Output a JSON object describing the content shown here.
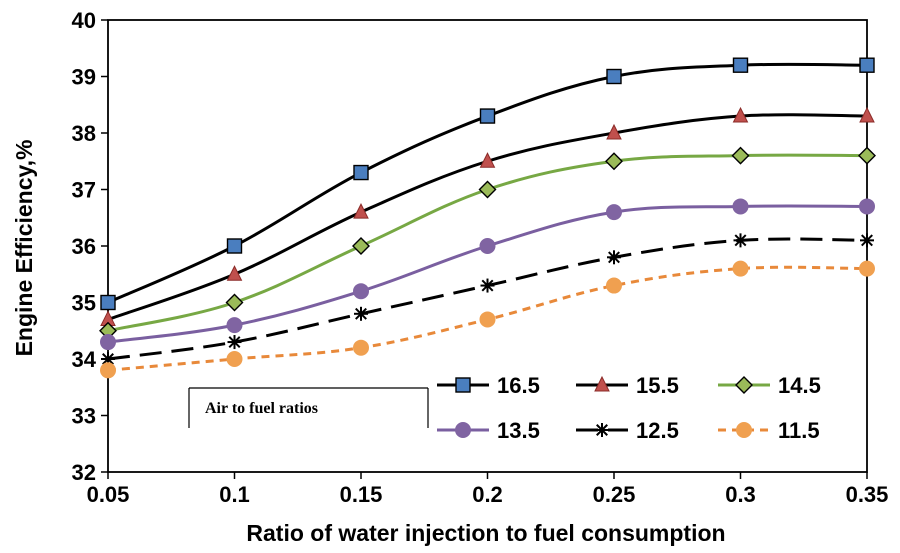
{
  "chart_data": {
    "type": "line",
    "title": "",
    "xlabel": "Ratio of water injection to fuel consumption",
    "ylabel": "Engine Efficiency,%",
    "x": [
      0.05,
      0.1,
      0.15,
      0.2,
      0.25,
      0.3,
      0.35
    ],
    "x_tick_labels": [
      "0.05",
      "0.1",
      "0.15",
      "0.2",
      "0.25",
      "0.3",
      "0.35"
    ],
    "y_tick_labels": [
      "32",
      "33",
      "34",
      "35",
      "36",
      "37",
      "38",
      "39",
      "40"
    ],
    "xlim": [
      0.05,
      0.35
    ],
    "ylim": [
      32,
      40
    ],
    "grid": false,
    "legend_position": "bottom-right",
    "annotation": "Air to fuel ratios",
    "series": [
      {
        "name": "16.5",
        "values": [
          35.0,
          36.0,
          37.3,
          38.3,
          39.0,
          39.2,
          39.2
        ],
        "color": "#000000",
        "marker": "square",
        "marker_color": "#4a7ebf",
        "dash": "solid"
      },
      {
        "name": "15.5",
        "values": [
          34.7,
          35.5,
          36.6,
          37.5,
          38.0,
          38.3,
          38.3
        ],
        "color": "#000000",
        "marker": "triangle",
        "marker_color": "#c0504d",
        "dash": "solid"
      },
      {
        "name": "14.5",
        "values": [
          34.5,
          35.0,
          36.0,
          37.0,
          37.5,
          37.6,
          37.6
        ],
        "color": "#77a844",
        "marker": "diamond",
        "marker_color": "#9bbb59",
        "dash": "solid"
      },
      {
        "name": "13.5",
        "values": [
          34.3,
          34.6,
          35.2,
          36.0,
          36.6,
          36.7,
          36.7
        ],
        "color": "#7a5fa0",
        "marker": "circle",
        "marker_color": "#8064a2",
        "dash": "solid"
      },
      {
        "name": "12.5",
        "values": [
          34.0,
          34.3,
          34.8,
          35.3,
          35.8,
          36.1,
          36.1
        ],
        "color": "#000000",
        "marker": "star",
        "marker_color": "#000000",
        "dash": "long-dash"
      },
      {
        "name": "11.5",
        "values": [
          33.8,
          34.0,
          34.2,
          34.7,
          35.3,
          35.6,
          35.6
        ],
        "color": "#e8893a",
        "marker": "circle",
        "marker_color": "#f0a050",
        "dash": "short-dash"
      }
    ]
  }
}
